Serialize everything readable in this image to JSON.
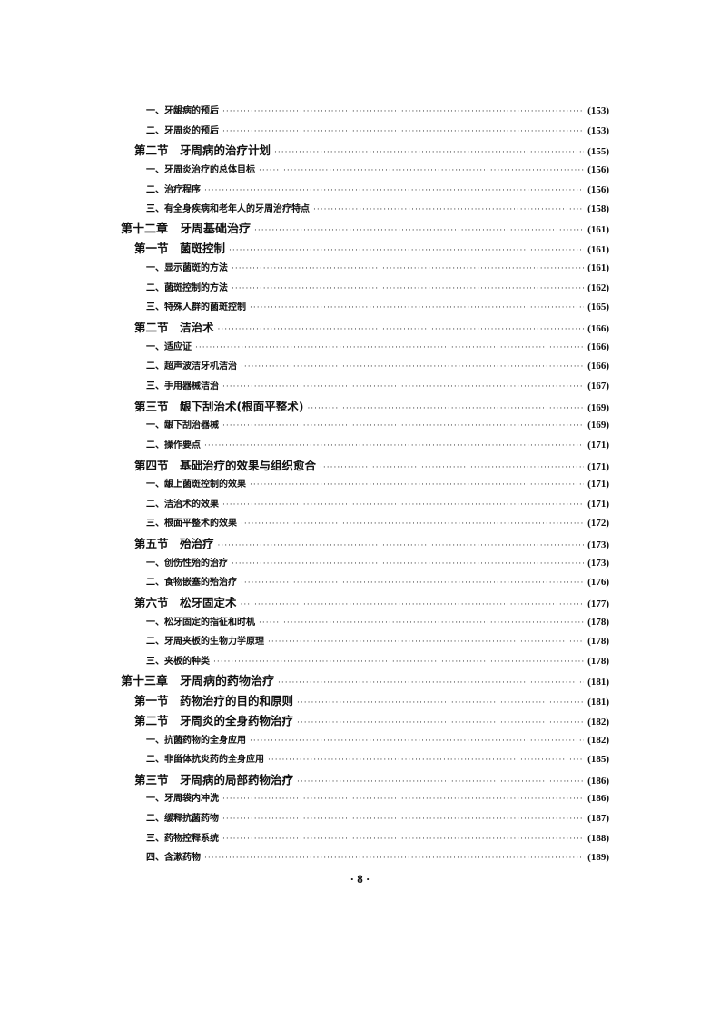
{
  "toc": [
    {
      "level": 2,
      "title": "一、牙龈病的预后",
      "page": "(153)"
    },
    {
      "level": 2,
      "title": "二、牙周炎的预后",
      "page": "(153)"
    },
    {
      "level": 1,
      "title": "第二节　牙周病的治疗计划",
      "page": "(155)"
    },
    {
      "level": 2,
      "title": "一、牙周炎治疗的总体目标",
      "page": "(156)"
    },
    {
      "level": 2,
      "title": "二、治疗程序",
      "page": "(156)"
    },
    {
      "level": 2,
      "title": "三、有全身疾病和老年人的牙周治疗特点",
      "page": "(158)"
    },
    {
      "level": 0,
      "title": "第十二章　牙周基础治疗",
      "page": "(161)"
    },
    {
      "level": 1,
      "title": "第一节　菌斑控制",
      "page": "(161)"
    },
    {
      "level": 2,
      "title": "一、显示菌斑的方法",
      "page": "(161)"
    },
    {
      "level": 2,
      "title": "二、菌斑控制的方法",
      "page": "(162)"
    },
    {
      "level": 2,
      "title": "三、特殊人群的菌斑控制",
      "page": "(165)"
    },
    {
      "level": 1,
      "title": "第二节　洁治术",
      "page": "(166)"
    },
    {
      "level": 2,
      "title": "一、适应证",
      "page": "(166)"
    },
    {
      "level": 2,
      "title": "二、超声波洁牙机洁治",
      "page": "(166)"
    },
    {
      "level": 2,
      "title": "三、手用器械洁治",
      "page": "(167)"
    },
    {
      "level": 1,
      "title": "第三节　龈下刮治术(根面平整术)",
      "page": "(169)"
    },
    {
      "level": 2,
      "title": "一、龈下刮治器械",
      "page": "(169)"
    },
    {
      "level": 2,
      "title": "二、操作要点",
      "page": "(171)"
    },
    {
      "level": 1,
      "title": "第四节　基础治疗的效果与组织愈合",
      "page": "(171)"
    },
    {
      "level": 2,
      "title": "一、龈上菌斑控制的效果",
      "page": "(171)"
    },
    {
      "level": 2,
      "title": "二、洁治术的效果",
      "page": "(171)"
    },
    {
      "level": 2,
      "title": "三、根面平整术的效果",
      "page": "(172)"
    },
    {
      "level": 1,
      "title": "第五节　殆治疗",
      "page": "(173)"
    },
    {
      "level": 2,
      "title": "一、创伤性殆的治疗",
      "page": "(173)"
    },
    {
      "level": 2,
      "title": "二、食物嵌塞的殆治疗",
      "page": "(176)"
    },
    {
      "level": 1,
      "title": "第六节　松牙固定术",
      "page": "(177)"
    },
    {
      "level": 2,
      "title": "一、松牙固定的指征和时机",
      "page": "(178)"
    },
    {
      "level": 2,
      "title": "二、牙周夹板的生物力学原理",
      "page": "(178)"
    },
    {
      "level": 2,
      "title": "三、夹板的种类",
      "page": "(178)"
    },
    {
      "level": 0,
      "title": "第十三章　牙周病的药物治疗",
      "page": "(181)"
    },
    {
      "level": 1,
      "title": "第一节　药物治疗的目的和原则",
      "page": "(181)"
    },
    {
      "level": 1,
      "title": "第二节　牙周炎的全身药物治疗",
      "page": "(182)"
    },
    {
      "level": 2,
      "title": "一、抗菌药物的全身应用",
      "page": "(182)"
    },
    {
      "level": 2,
      "title": "二、非甾体抗炎药的全身应用",
      "page": "(185)"
    },
    {
      "level": 1,
      "title": "第三节　牙周病的局部药物治疗",
      "page": "(186)"
    },
    {
      "level": 2,
      "title": "一、牙周袋内冲洗",
      "page": "(186)"
    },
    {
      "level": 2,
      "title": "二、缓释抗菌药物",
      "page": "(187)"
    },
    {
      "level": 2,
      "title": "三、药物控释系统",
      "page": "(188)"
    },
    {
      "level": 2,
      "title": "四、含漱药物",
      "page": "(189)"
    }
  ],
  "page_number": "· 8 ·"
}
